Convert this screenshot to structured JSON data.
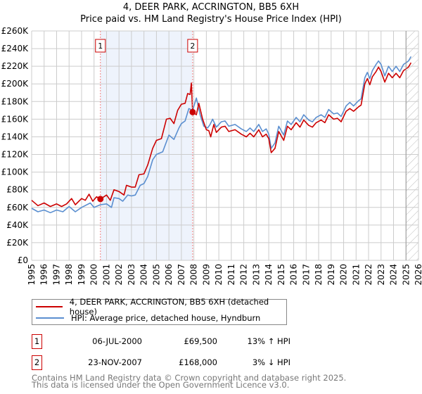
{
  "title": "4, DEER PARK, ACCRINGTON, BB5 6XH",
  "subtitle": "Price paid vs. HM Land Registry's House Price Index (HPI)",
  "chart_data": {
    "type": "line",
    "xlim": [
      1995,
      2026
    ],
    "ylim": [
      0,
      260000
    ],
    "y_ticks": [
      0,
      20000,
      40000,
      60000,
      80000,
      100000,
      120000,
      140000,
      160000,
      180000,
      200000,
      220000,
      240000,
      260000
    ],
    "y_tick_labels": [
      "£0",
      "£20K",
      "£40K",
      "£60K",
      "£80K",
      "£100K",
      "£120K",
      "£140K",
      "£160K",
      "£180K",
      "£200K",
      "£220K",
      "£240K",
      "£260K"
    ],
    "x_ticks": [
      1995,
      1996,
      1997,
      1998,
      1999,
      2000,
      2001,
      2002,
      2003,
      2004,
      2005,
      2006,
      2007,
      2008,
      2009,
      2010,
      2011,
      2012,
      2013,
      2014,
      2015,
      2016,
      2017,
      2018,
      2019,
      2020,
      2021,
      2022,
      2023,
      2024,
      2025,
      2026
    ],
    "x_tick_labels": [
      "1995",
      "1996",
      "1997",
      "1998",
      "1999",
      "2000",
      "2001",
      "2002",
      "2003",
      "2004",
      "2005",
      "2006",
      "2007",
      "2008",
      "2009",
      "2010",
      "2011",
      "2012",
      "2013",
      "2014",
      "2015",
      "2016",
      "2017",
      "2018",
      "2019",
      "2020",
      "2021",
      "2022",
      "2023",
      "2024",
      "2025",
      "2026"
    ],
    "grid": true,
    "shaded_period": [
      2000.51,
      2007.9
    ],
    "future_hatch_from": 2025.0,
    "colors": {
      "property": "#cc0000",
      "hpi": "#5b8fd0",
      "shade": "#eef3fc"
    },
    "series": [
      {
        "name": "4, DEER PARK, ACCRINGTON, BB5 6XH (detached house)",
        "color": "#cc0000",
        "points": [
          [
            1995,
            68
          ],
          [
            1995.5,
            62
          ],
          [
            1996,
            65
          ],
          [
            1996.5,
            61
          ],
          [
            1997,
            64
          ],
          [
            1997.4,
            61
          ],
          [
            1997.8,
            64
          ],
          [
            1998.2,
            70
          ],
          [
            1998.5,
            63
          ],
          [
            1999,
            70
          ],
          [
            1999.3,
            68
          ],
          [
            1999.6,
            75
          ],
          [
            1999.9,
            67
          ],
          [
            2000.2,
            72
          ],
          [
            2000.51,
            69.5
          ],
          [
            2001,
            74
          ],
          [
            2001.3,
            68
          ],
          [
            2001.6,
            80
          ],
          [
            2002,
            78
          ],
          [
            2002.4,
            74
          ],
          [
            2002.6,
            85
          ],
          [
            2003,
            83
          ],
          [
            2003.3,
            83
          ],
          [
            2003.6,
            97
          ],
          [
            2004,
            98
          ],
          [
            2004.3,
            108
          ],
          [
            2004.7,
            127
          ],
          [
            2005,
            136
          ],
          [
            2005.4,
            138
          ],
          [
            2005.8,
            160
          ],
          [
            2006.1,
            161
          ],
          [
            2006.4,
            155
          ],
          [
            2006.7,
            170
          ],
          [
            2007,
            177
          ],
          [
            2007.3,
            178
          ],
          [
            2007.5,
            189
          ],
          [
            2007.7,
            188
          ],
          [
            2007.8,
            201
          ],
          [
            2007.9,
            168
          ],
          [
            2008.2,
            165
          ],
          [
            2008.4,
            178
          ],
          [
            2008.7,
            160
          ],
          [
            2009,
            148
          ],
          [
            2009.2,
            147
          ],
          [
            2009.35,
            140
          ],
          [
            2009.6,
            154
          ],
          [
            2009.8,
            145
          ],
          [
            2010.2,
            151
          ],
          [
            2010.5,
            152
          ],
          [
            2010.8,
            146
          ],
          [
            2011.3,
            148
          ],
          [
            2011.8,
            143
          ],
          [
            2012.2,
            140
          ],
          [
            2012.5,
            144
          ],
          [
            2012.8,
            140
          ],
          [
            2013.2,
            148
          ],
          [
            2013.5,
            140
          ],
          [
            2013.8,
            143
          ],
          [
            2014,
            138
          ],
          [
            2014.2,
            122
          ],
          [
            2014.5,
            127
          ],
          [
            2014.8,
            146
          ],
          [
            2015.2,
            136
          ],
          [
            2015.5,
            152
          ],
          [
            2015.8,
            148
          ],
          [
            2016.2,
            156
          ],
          [
            2016.5,
            151
          ],
          [
            2016.8,
            159
          ],
          [
            2017.2,
            153
          ],
          [
            2017.5,
            151
          ],
          [
            2017.8,
            156
          ],
          [
            2018.2,
            159
          ],
          [
            2018.5,
            156
          ],
          [
            2018.8,
            165
          ],
          [
            2019.2,
            160
          ],
          [
            2019.5,
            161
          ],
          [
            2019.8,
            157
          ],
          [
            2020.2,
            169
          ],
          [
            2020.5,
            172
          ],
          [
            2020.8,
            169
          ],
          [
            2021.2,
            174
          ],
          [
            2021.4,
            176
          ],
          [
            2021.7,
            200
          ],
          [
            2021.9,
            206
          ],
          [
            2022.1,
            199
          ],
          [
            2022.3,
            208
          ],
          [
            2022.6,
            214
          ],
          [
            2022.8,
            219
          ],
          [
            2023.0,
            214
          ],
          [
            2023.3,
            202
          ],
          [
            2023.6,
            212
          ],
          [
            2023.9,
            207
          ],
          [
            2024.2,
            212
          ],
          [
            2024.5,
            207
          ],
          [
            2024.8,
            215
          ],
          [
            2025.2,
            219
          ],
          [
            2025.4,
            224
          ]
        ]
      },
      {
        "name": "HPI: Average price, detached house, Hyndburn",
        "color": "#5b8fd0",
        "points": [
          [
            1995,
            59
          ],
          [
            1995.5,
            55
          ],
          [
            1996,
            57
          ],
          [
            1996.5,
            54
          ],
          [
            1997,
            57
          ],
          [
            1997.5,
            55
          ],
          [
            1998,
            61
          ],
          [
            1998.5,
            55
          ],
          [
            1999,
            60
          ],
          [
            1999.7,
            65
          ],
          [
            2000,
            60
          ],
          [
            2000.5,
            63
          ],
          [
            2001,
            64
          ],
          [
            2001.4,
            60
          ],
          [
            2001.6,
            71
          ],
          [
            2002,
            70
          ],
          [
            2002.3,
            67
          ],
          [
            2002.7,
            74
          ],
          [
            2003,
            73
          ],
          [
            2003.3,
            74
          ],
          [
            2003.7,
            85
          ],
          [
            2004,
            87
          ],
          [
            2004.3,
            95
          ],
          [
            2004.7,
            114
          ],
          [
            2005,
            120
          ],
          [
            2005.5,
            123
          ],
          [
            2006,
            142
          ],
          [
            2006.4,
            137
          ],
          [
            2006.8,
            150
          ],
          [
            2007,
            155
          ],
          [
            2007.3,
            158
          ],
          [
            2007.6,
            172
          ],
          [
            2007.9,
            170
          ],
          [
            2008.2,
            184
          ],
          [
            2008.5,
            165
          ],
          [
            2008.8,
            152
          ],
          [
            2009.1,
            150
          ],
          [
            2009.3,
            154
          ],
          [
            2009.5,
            160
          ],
          [
            2009.8,
            151
          ],
          [
            2010.2,
            157
          ],
          [
            2010.5,
            158
          ],
          [
            2010.8,
            152
          ],
          [
            2011.3,
            154
          ],
          [
            2011.8,
            149
          ],
          [
            2012.2,
            146
          ],
          [
            2012.5,
            150
          ],
          [
            2012.8,
            146
          ],
          [
            2013.2,
            154
          ],
          [
            2013.5,
            146
          ],
          [
            2013.8,
            149
          ],
          [
            2014,
            143
          ],
          [
            2014.2,
            127
          ],
          [
            2014.5,
            133
          ],
          [
            2014.8,
            152
          ],
          [
            2015.2,
            142
          ],
          [
            2015.5,
            158
          ],
          [
            2015.8,
            154
          ],
          [
            2016.2,
            162
          ],
          [
            2016.5,
            157
          ],
          [
            2016.8,
            165
          ],
          [
            2017.2,
            159
          ],
          [
            2017.5,
            157
          ],
          [
            2017.8,
            162
          ],
          [
            2018.2,
            165
          ],
          [
            2018.5,
            162
          ],
          [
            2018.8,
            171
          ],
          [
            2019.2,
            166
          ],
          [
            2019.5,
            167
          ],
          [
            2019.8,
            163
          ],
          [
            2020.2,
            175
          ],
          [
            2020.5,
            179
          ],
          [
            2020.8,
            175
          ],
          [
            2021.2,
            181
          ],
          [
            2021.4,
            183
          ],
          [
            2021.7,
            207
          ],
          [
            2021.9,
            213
          ],
          [
            2022.1,
            206
          ],
          [
            2022.3,
            215
          ],
          [
            2022.6,
            222
          ],
          [
            2022.8,
            226
          ],
          [
            2023.0,
            222
          ],
          [
            2023.3,
            209
          ],
          [
            2023.6,
            220
          ],
          [
            2023.9,
            214
          ],
          [
            2024.2,
            220
          ],
          [
            2024.5,
            214
          ],
          [
            2024.8,
            222
          ],
          [
            2025.2,
            226
          ],
          [
            2025.4,
            231
          ]
        ]
      }
    ],
    "value_unit": "thousand GBP",
    "annotations": [
      {
        "label": "1",
        "x": 2000.51,
        "y": 69.5
      },
      {
        "label": "2",
        "x": 2007.9,
        "y": 168
      }
    ]
  },
  "legend": {
    "property": "4, DEER PARK, ACCRINGTON, BB5 6XH (detached house)",
    "hpi": "HPI: Average price, detached house, Hyndburn"
  },
  "transactions": [
    {
      "num": "1",
      "date": "06-JUL-2000",
      "price": "£69,500",
      "hpi": "13% ↑ HPI"
    },
    {
      "num": "2",
      "date": "23-NOV-2007",
      "price": "£168,000",
      "hpi": "3% ↓ HPI"
    }
  ],
  "footer": {
    "line1": "Contains HM Land Registry data © Crown copyright and database right 2025.",
    "line2": "This data is licensed under the Open Government Licence v3.0."
  }
}
